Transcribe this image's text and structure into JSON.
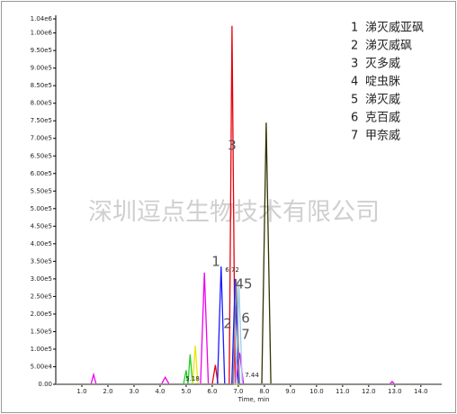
{
  "chart_data": {
    "type": "line",
    "x_label": "Time, min",
    "xlim": [
      0,
      14.8
    ],
    "ylim": [
      0,
      1040000
    ],
    "xticks": [
      {
        "value": 1,
        "label": "1.0"
      },
      {
        "value": 2,
        "label": "2.0"
      },
      {
        "value": 3,
        "label": "3.0"
      },
      {
        "value": 4,
        "label": "4.0"
      },
      {
        "value": 5,
        "label": "5.0"
      },
      {
        "value": 6,
        "label": "6.0"
      },
      {
        "value": 7,
        "label": "7.0"
      },
      {
        "value": 8,
        "label": "8.0"
      },
      {
        "value": 9,
        "label": "9.0"
      },
      {
        "value": 10,
        "label": "10.0"
      },
      {
        "value": 11,
        "label": "11.0"
      },
      {
        "value": 12,
        "label": "12.0"
      },
      {
        "value": 13,
        "label": "13.0"
      },
      {
        "value": 14,
        "label": "14.0"
      }
    ],
    "yticks": [
      {
        "value": 0,
        "label": "0.00"
      },
      {
        "value": 50000,
        "label": "5.00e4"
      },
      {
        "value": 100000,
        "label": "1.00e5"
      },
      {
        "value": 150000,
        "label": "1.50e5"
      },
      {
        "value": 200000,
        "label": "2.00e5"
      },
      {
        "value": 250000,
        "label": "2.50e5"
      },
      {
        "value": 300000,
        "label": "3.00e5"
      },
      {
        "value": 350000,
        "label": "3.50e5"
      },
      {
        "value": 400000,
        "label": "4.00e5"
      },
      {
        "value": 450000,
        "label": "4.50e5"
      },
      {
        "value": 500000,
        "label": "5.00e5"
      },
      {
        "value": 550000,
        "label": "5.50e5"
      },
      {
        "value": 600000,
        "label": "6.00e5"
      },
      {
        "value": 650000,
        "label": "6.50e5"
      },
      {
        "value": 700000,
        "label": "7.00e5"
      },
      {
        "value": 750000,
        "label": "7.50e5"
      },
      {
        "value": 800000,
        "label": "8.00e5"
      },
      {
        "value": 850000,
        "label": "8.50e5"
      },
      {
        "value": 900000,
        "label": "9.00e5"
      },
      {
        "value": 950000,
        "label": "9.50e5"
      },
      {
        "value": 1000000,
        "label": "1.00e6"
      },
      {
        "value": 1040000,
        "label": "1.04e6"
      }
    ],
    "series": [
      {
        "color": "#e8000b",
        "x": [
          0,
          6.0,
          6.12,
          6.22,
          6.35,
          6.65,
          6.76,
          6.88,
          14.8
        ],
        "values": [
          0,
          0,
          55000,
          0,
          0,
          0,
          1020000,
          0,
          0
        ]
      },
      {
        "color": "#333300",
        "x": [
          0,
          7.9,
          8.07,
          8.25,
          14.8
        ],
        "values": [
          0,
          0,
          745000,
          0,
          0
        ]
      },
      {
        "color": "#1a1aff",
        "x": [
          0,
          6.2,
          6.34,
          6.48,
          6.75,
          6.88,
          7.0,
          14.8
        ],
        "values": [
          0,
          0,
          335000,
          0,
          0,
          300000,
          0,
          0
        ]
      },
      {
        "color": "#ee00ee",
        "x": [
          0,
          1.35,
          1.45,
          1.55,
          4.05,
          4.2,
          4.35,
          5.55,
          5.7,
          5.85,
          6.9,
          7.05,
          7.2,
          12.8,
          12.9,
          13.0,
          14.8
        ],
        "values": [
          0,
          0,
          28000,
          0,
          0,
          20000,
          0,
          0,
          318000,
          0,
          0,
          90000,
          0,
          0,
          8000,
          0,
          0
        ]
      },
      {
        "color": "#22cc22",
        "x": [
          0,
          4.9,
          5.0,
          5.07,
          5.15,
          5.25,
          14.8
        ],
        "values": [
          0,
          0,
          40000,
          0,
          85000,
          0,
          0
        ]
      },
      {
        "color": "#e8e800",
        "x": [
          0,
          5.25,
          5.35,
          5.45,
          14.8
        ],
        "values": [
          0,
          0,
          110000,
          0,
          0
        ]
      },
      {
        "color": "#99ccee",
        "x": [
          0,
          6.9,
          7.02,
          7.15,
          14.8
        ],
        "values": [
          0,
          0,
          287000,
          0,
          0
        ]
      },
      {
        "color": "#888888",
        "x": [
          0,
          6.8,
          6.92,
          7.05,
          14.8
        ],
        "values": [
          0,
          0,
          300000,
          0,
          0
        ]
      }
    ],
    "annotations": [
      "1",
      "6.72",
      "3",
      "45",
      "2",
      "6",
      "7",
      "5.18",
      "7.44"
    ],
    "legend_entries": [
      {
        "number": "1",
        "name": "涕灭威亚砜"
      },
      {
        "number": "2",
        "name": "涕灭威砜"
      },
      {
        "number": "3",
        "name": "灭多威"
      },
      {
        "number": "4",
        "name": "啶虫脒"
      },
      {
        "number": "5",
        "name": "涕灭威"
      },
      {
        "number": "6",
        "name": "克百威"
      },
      {
        "number": "7",
        "name": "甲奈威"
      }
    ],
    "watermark": "深圳逗点生物技术有限公司"
  }
}
